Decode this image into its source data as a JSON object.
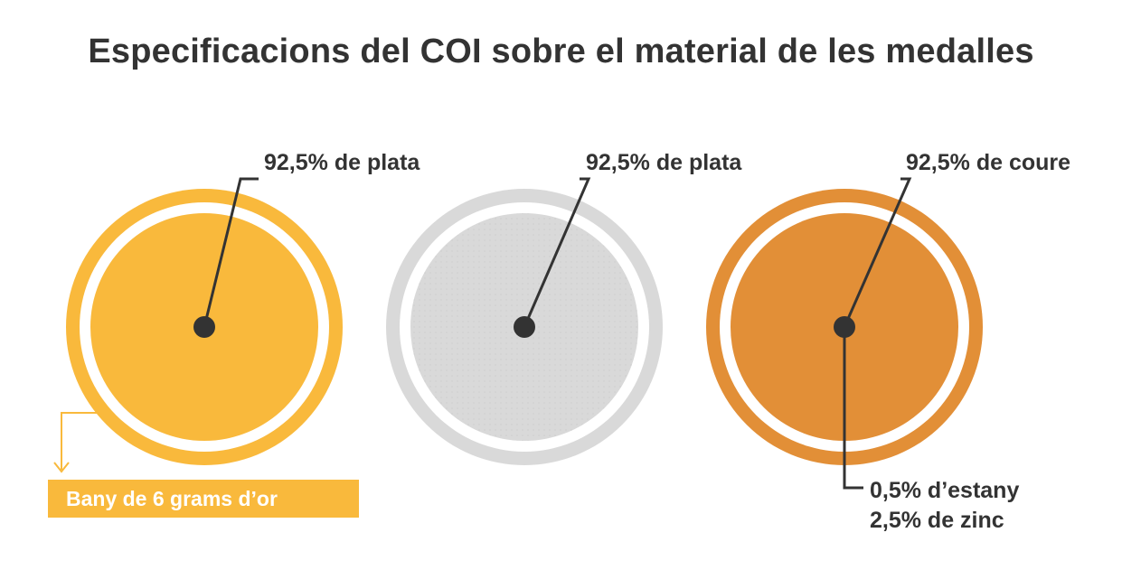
{
  "title": "Especificacions del COI sobre el material de les medalles",
  "medals": [
    {
      "name": "gold",
      "color": "#f9b93c",
      "label": "92,5% de plata",
      "extra_label": "Bany de 6 grams d’or"
    },
    {
      "name": "silver",
      "color": "#d9d9d9",
      "label": "92,5% de plata"
    },
    {
      "name": "bronze",
      "color": "#e28f37",
      "label": "92,5% de coure",
      "extra_lines": [
        "0,5% d’estany",
        "2,5% de zinc"
      ]
    }
  ],
  "colors": {
    "text": "#333333",
    "gold": "#f9b93c",
    "silver": "#d9d9d9",
    "bronze": "#e28f37"
  }
}
